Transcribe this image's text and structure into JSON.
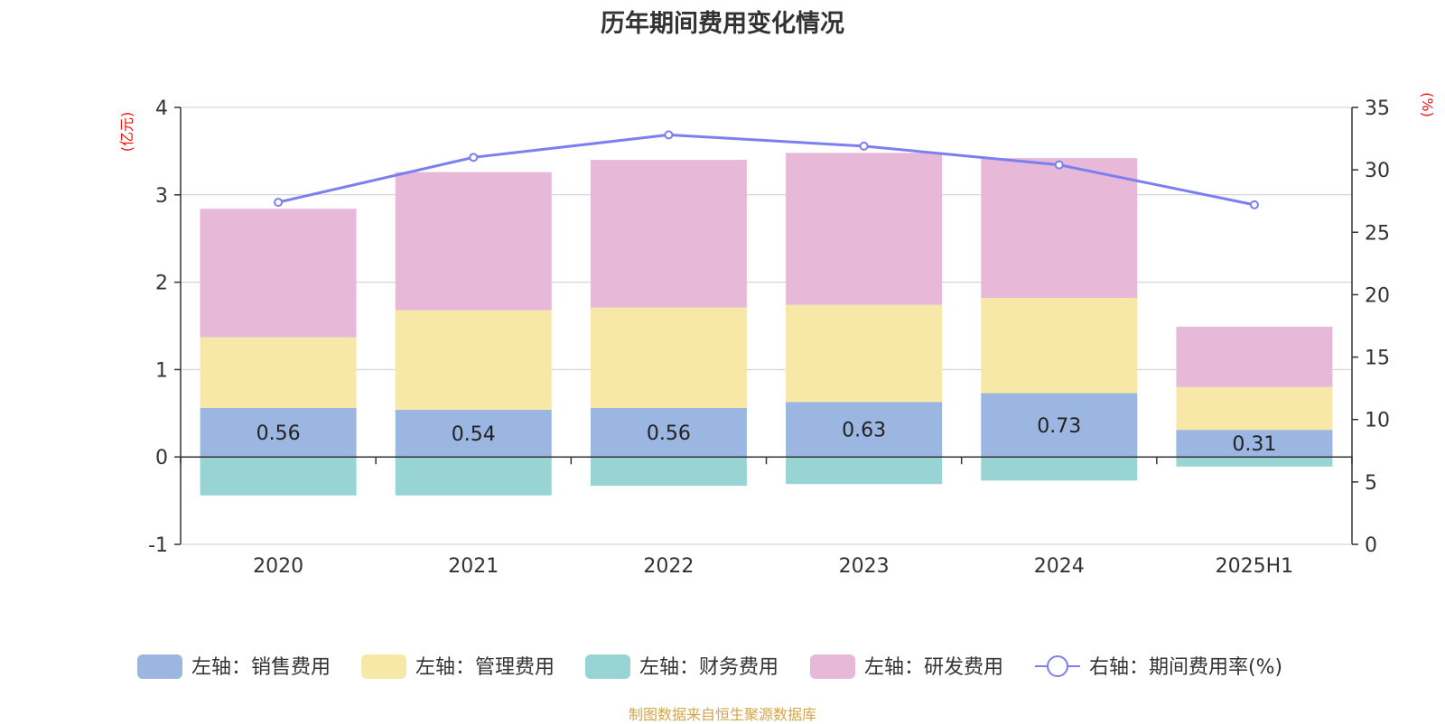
{
  "chart_data": {
    "type": "bar",
    "title": "历年期间费用变化情况",
    "categories": [
      "2020",
      "2021",
      "2022",
      "2023",
      "2024",
      "2025H1"
    ],
    "y_left": {
      "unit": "(亿元)",
      "ylim": [
        -1,
        4
      ],
      "ticks": [
        "-1",
        "0",
        "1",
        "2",
        "3",
        "4"
      ]
    },
    "y_right": {
      "unit": "(%)",
      "ylim": [
        0,
        35
      ],
      "ticks": [
        "0",
        "5",
        "10",
        "15",
        "20",
        "25",
        "30",
        "35"
      ]
    },
    "series": [
      {
        "name": "左轴：销售费用",
        "type": "bar",
        "axis": "left",
        "color": "#9bb6e0",
        "values": [
          0.56,
          0.54,
          0.56,
          0.63,
          0.73,
          0.31
        ],
        "labels": [
          "0.56",
          "0.54",
          "0.56",
          "0.63",
          "0.73",
          "0.31"
        ]
      },
      {
        "name": "左轴：管理费用",
        "type": "bar",
        "axis": "left",
        "color": "#f8e8a8",
        "values": [
          0.81,
          1.14,
          1.15,
          1.11,
          1.09,
          0.49
        ]
      },
      {
        "name": "左轴：财务费用",
        "type": "bar",
        "axis": "left",
        "color": "#98d4d4",
        "values": [
          -0.44,
          -0.44,
          -0.33,
          -0.31,
          -0.27,
          -0.11
        ]
      },
      {
        "name": "左轴：研发费用",
        "type": "bar",
        "axis": "left",
        "color": "#e8b8d8",
        "values": [
          1.47,
          1.58,
          1.69,
          1.74,
          1.6,
          0.69
        ]
      },
      {
        "name": "右轴：期间费用率(%)",
        "type": "line",
        "axis": "right",
        "color": "#7b7fef",
        "values": [
          27.4,
          31.0,
          32.8,
          31.9,
          30.4,
          27.2
        ]
      }
    ],
    "grid": true,
    "legend": "bottom"
  },
  "footer": "制图数据来自恒生聚源数据库"
}
